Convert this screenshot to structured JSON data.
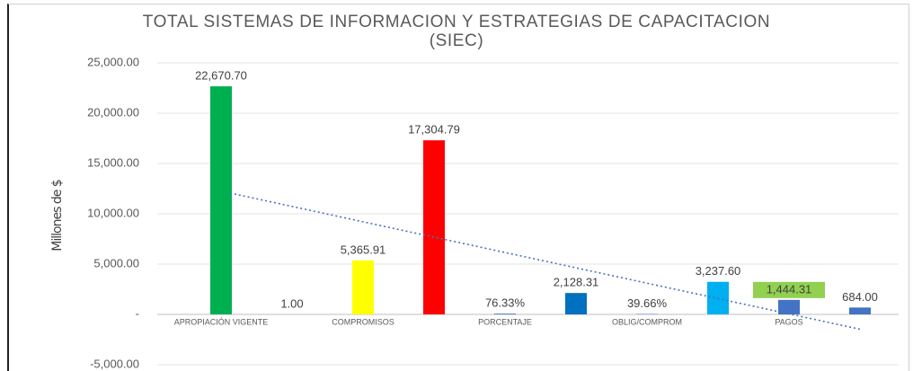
{
  "chart_data": {
    "type": "bar",
    "title": "TOTAL SISTEMAS DE INFORMACION Y ESTRATEGIAS DE CAPACITACION (SIEC)",
    "y_label": "Millones de $",
    "categories": [
      "APROPIACIÓN VIGENTE",
      null,
      "COMPROMISOS",
      null,
      "PORCENTAJE",
      null,
      "OBLIG/COMPROM",
      null,
      "PAGOS",
      null
    ],
    "series": [
      {
        "values": [
          22670.7,
          1.0,
          5365.91,
          17304.79,
          76.33,
          2128.31,
          39.66,
          3237.6,
          1444.31,
          684.0
        ],
        "value_labels": [
          "22,670.70",
          "1.00",
          "5,365.91",
          "17,304.79",
          "76.33%",
          "2,128.31",
          "39.66%",
          "3,237.60",
          "1,444.31",
          "684.00"
        ],
        "colors": [
          "#00b050",
          "#4472c4",
          "#ffff00",
          "#ff0000",
          "#4472c4",
          "#0070c0",
          "#4472c4",
          "#00b0f0",
          "#4472c4",
          "#4472c4"
        ]
      }
    ],
    "highlight_label": 8,
    "highlight_color": "#92d050",
    "trendline": "linear",
    "trendline_color": "#4472c4",
    "ylim": [
      -5000,
      25000
    ],
    "yticks": [
      {
        "value": -5000,
        "label": "-5,000.00"
      },
      {
        "value": 0,
        "label": "-"
      },
      {
        "value": 5000,
        "label": "5,000.00"
      },
      {
        "value": 10000,
        "label": "10,000.00"
      },
      {
        "value": 15000,
        "label": "15,000.00"
      },
      {
        "value": 20000,
        "label": "20,000.00"
      },
      {
        "value": 25000,
        "label": "25,000.00"
      }
    ],
    "grid": true
  }
}
